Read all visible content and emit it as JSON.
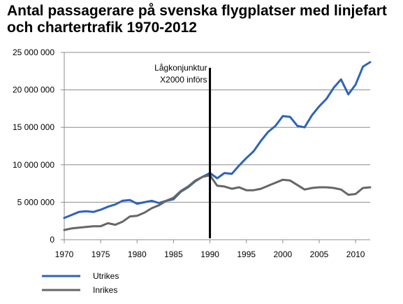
{
  "chart_data": {
    "type": "line",
    "title": "Antal passagerare på svenska flygplatser med linjefart och chartertrafik 1970-2012",
    "xlabel": "",
    "ylabel": "",
    "xlim": [
      1970,
      2012
    ],
    "ylim": [
      0,
      25000000
    ],
    "grid": true,
    "legend": "bottom-left",
    "x_ticks": [
      1970,
      1975,
      1980,
      1985,
      1990,
      1995,
      2000,
      2005,
      2010
    ],
    "y_ticks": [
      0,
      5000000,
      10000000,
      15000000,
      20000000,
      25000000
    ],
    "y_tick_labels": [
      "0",
      "5 000 000",
      "10 000 000",
      "15 000 000",
      "20 000 000",
      "25 000 000"
    ],
    "x": [
      1970,
      1971,
      1972,
      1973,
      1974,
      1975,
      1976,
      1977,
      1978,
      1979,
      1980,
      1981,
      1982,
      1983,
      1984,
      1985,
      1986,
      1987,
      1988,
      1989,
      1990,
      1991,
      1992,
      1993,
      1994,
      1995,
      1996,
      1997,
      1998,
      1999,
      2000,
      2001,
      2002,
      2003,
      2004,
      2005,
      2006,
      2007,
      2008,
      2009,
      2010,
      2011,
      2012
    ],
    "series": [
      {
        "name": "Utrikes",
        "color": "#2e63b8",
        "values": [
          2900000,
          3300000,
          3700000,
          3800000,
          3700000,
          4000000,
          4400000,
          4700000,
          5200000,
          5300000,
          4800000,
          5000000,
          5200000,
          4900000,
          5200000,
          5400000,
          6400000,
          7000000,
          7800000,
          8400000,
          8900000,
          8200000,
          8900000,
          8800000,
          9900000,
          10900000,
          11800000,
          13200000,
          14400000,
          15200000,
          16500000,
          16400000,
          15200000,
          15000000,
          16600000,
          17800000,
          18800000,
          20300000,
          21400000,
          19400000,
          20700000,
          23100000,
          23700000
        ]
      },
      {
        "name": "Inrikes",
        "color": "#666666",
        "values": [
          1300000,
          1500000,
          1600000,
          1700000,
          1800000,
          1800000,
          2200000,
          2000000,
          2400000,
          3100000,
          3200000,
          3600000,
          4200000,
          4600000,
          5200000,
          5600000,
          6500000,
          7100000,
          7900000,
          8400000,
          8600000,
          7200000,
          7100000,
          6800000,
          7000000,
          6600000,
          6600000,
          6800000,
          7200000,
          7600000,
          8000000,
          7900000,
          7300000,
          6700000,
          6900000,
          7000000,
          7000000,
          6900000,
          6700000,
          6000000,
          6100000,
          6900000,
          7000000
        ]
      }
    ],
    "annotation": {
      "x": 1990,
      "lines": [
        "Lågkonjunktur",
        "X2000 införs"
      ]
    }
  }
}
